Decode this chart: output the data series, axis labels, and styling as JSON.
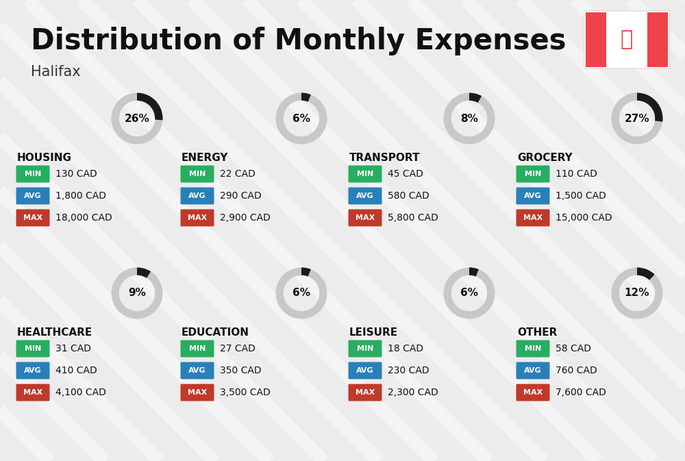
{
  "title": "Distribution of Monthly Expenses",
  "subtitle": "Halifax",
  "background_color": "#ececec",
  "categories": [
    {
      "name": "HOUSING",
      "percent": 26,
      "min": "130 CAD",
      "avg": "1,800 CAD",
      "max": "18,000 CAD",
      "row": 0,
      "col": 0,
      "emoji": "🏢"
    },
    {
      "name": "ENERGY",
      "percent": 6,
      "min": "22 CAD",
      "avg": "290 CAD",
      "max": "2,900 CAD",
      "row": 0,
      "col": 1,
      "emoji": "⚡"
    },
    {
      "name": "TRANSPORT",
      "percent": 8,
      "min": "45 CAD",
      "avg": "580 CAD",
      "max": "5,800 CAD",
      "row": 0,
      "col": 2,
      "emoji": "🚌"
    },
    {
      "name": "GROCERY",
      "percent": 27,
      "min": "110 CAD",
      "avg": "1,500 CAD",
      "max": "15,000 CAD",
      "row": 0,
      "col": 3,
      "emoji": "🛒"
    },
    {
      "name": "HEALTHCARE",
      "percent": 9,
      "min": "31 CAD",
      "avg": "410 CAD",
      "max": "4,100 CAD",
      "row": 1,
      "col": 0,
      "emoji": "❤️"
    },
    {
      "name": "EDUCATION",
      "percent": 6,
      "min": "27 CAD",
      "avg": "350 CAD",
      "max": "3,500 CAD",
      "row": 1,
      "col": 1,
      "emoji": "🎓"
    },
    {
      "name": "LEISURE",
      "percent": 6,
      "min": "18 CAD",
      "avg": "230 CAD",
      "max": "2,300 CAD",
      "row": 1,
      "col": 2,
      "emoji": "🛍️"
    },
    {
      "name": "OTHER",
      "percent": 12,
      "min": "58 CAD",
      "avg": "760 CAD",
      "max": "7,600 CAD",
      "row": 1,
      "col": 3,
      "emoji": "💰"
    }
  ],
  "color_min": "#27ae60",
  "color_avg": "#2980b9",
  "color_max": "#c0392b",
  "donut_filled": "#1a1a1a",
  "donut_empty": "#c8c8c8",
  "title_fontsize": 30,
  "subtitle_fontsize": 15,
  "stripe_color": "#ffffff",
  "stripe_alpha": 0.45,
  "flag_red": "#F0424A"
}
